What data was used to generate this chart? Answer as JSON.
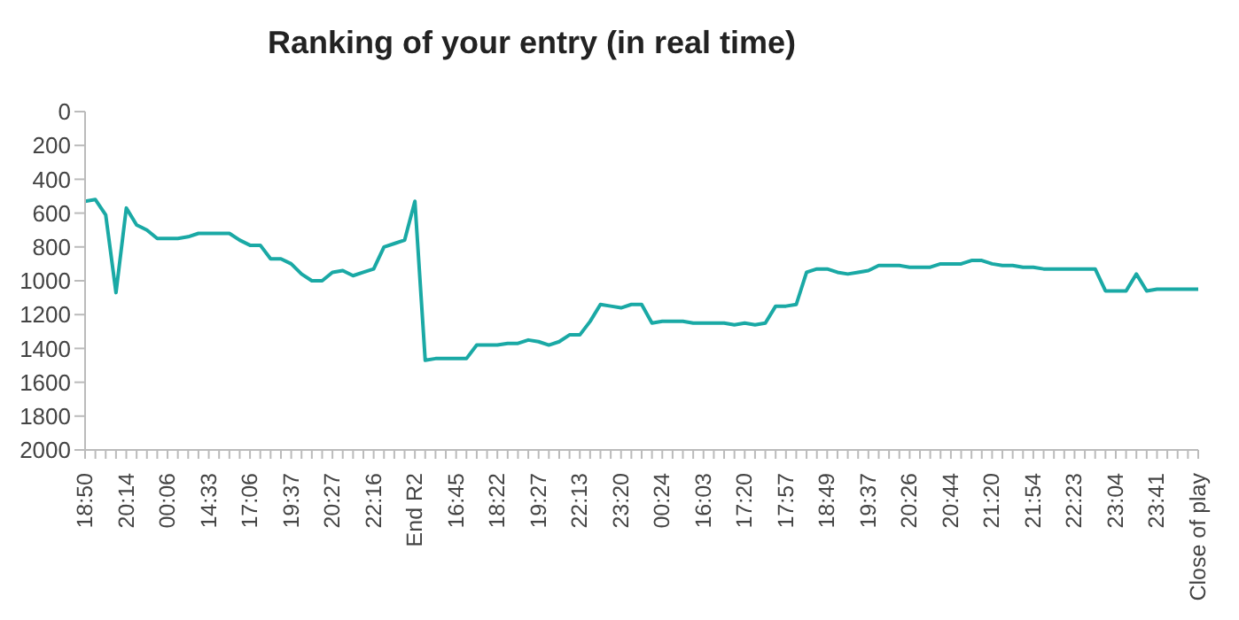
{
  "chart_data": {
    "type": "line",
    "title": "Ranking of your entry (in real time)",
    "categories": [
      "18:50",
      null,
      null,
      null,
      "20:14",
      null,
      null,
      null,
      "00:06",
      null,
      null,
      null,
      "14:33",
      null,
      null,
      null,
      "17:06",
      null,
      null,
      null,
      "19:37",
      null,
      null,
      null,
      "20:27",
      null,
      null,
      null,
      "22:16",
      null,
      null,
      null,
      "End R2",
      null,
      null,
      null,
      "16:45",
      null,
      null,
      null,
      "18:22",
      null,
      null,
      null,
      "19:27",
      null,
      null,
      null,
      "22:13",
      null,
      null,
      null,
      "23:20",
      null,
      null,
      null,
      "00:24",
      null,
      null,
      null,
      "16:03",
      null,
      null,
      null,
      "17:20",
      null,
      null,
      null,
      "17:57",
      null,
      null,
      null,
      "18:49",
      null,
      null,
      null,
      "19:37",
      null,
      null,
      null,
      "20:26",
      null,
      null,
      null,
      "20:44",
      null,
      null,
      null,
      "21:20",
      null,
      null,
      null,
      "21:54",
      null,
      null,
      null,
      "22:23",
      null,
      null,
      null,
      "23:04",
      null,
      null,
      null,
      "23:41",
      null,
      null,
      null,
      "Close of play"
    ],
    "series": [
      {
        "color": "#1aa9a5",
        "values": [
          530,
          520,
          610,
          1070,
          570,
          670,
          700,
          750,
          750,
          750,
          740,
          720,
          720,
          720,
          720,
          760,
          790,
          790,
          870,
          870,
          900,
          960,
          1000,
          1000,
          950,
          940,
          970,
          950,
          930,
          800,
          780,
          760,
          530,
          1470,
          1460,
          1460,
          1460,
          1460,
          1380,
          1380,
          1380,
          1370,
          1370,
          1350,
          1360,
          1380,
          1360,
          1320,
          1320,
          1240,
          1140,
          1150,
          1160,
          1140,
          1140,
          1250,
          1240,
          1240,
          1240,
          1250,
          1250,
          1250,
          1250,
          1260,
          1250,
          1260,
          1250,
          1150,
          1150,
          1140,
          950,
          930,
          930,
          950,
          960,
          950,
          940,
          910,
          910,
          910,
          920,
          920,
          920,
          900,
          900,
          900,
          880,
          880,
          900,
          910,
          910,
          920,
          920,
          930,
          930,
          930,
          930,
          930,
          930,
          1060,
          1060,
          1060,
          960,
          1060,
          1050,
          1050,
          1050,
          1050,
          1050
        ]
      }
    ],
    "ylim": [
      2000,
      0
    ],
    "yticks": [
      0,
      200,
      400,
      600,
      800,
      1000,
      1200,
      1400,
      1600,
      1800,
      2000
    ],
    "marker": "none",
    "line_style": "solid"
  }
}
